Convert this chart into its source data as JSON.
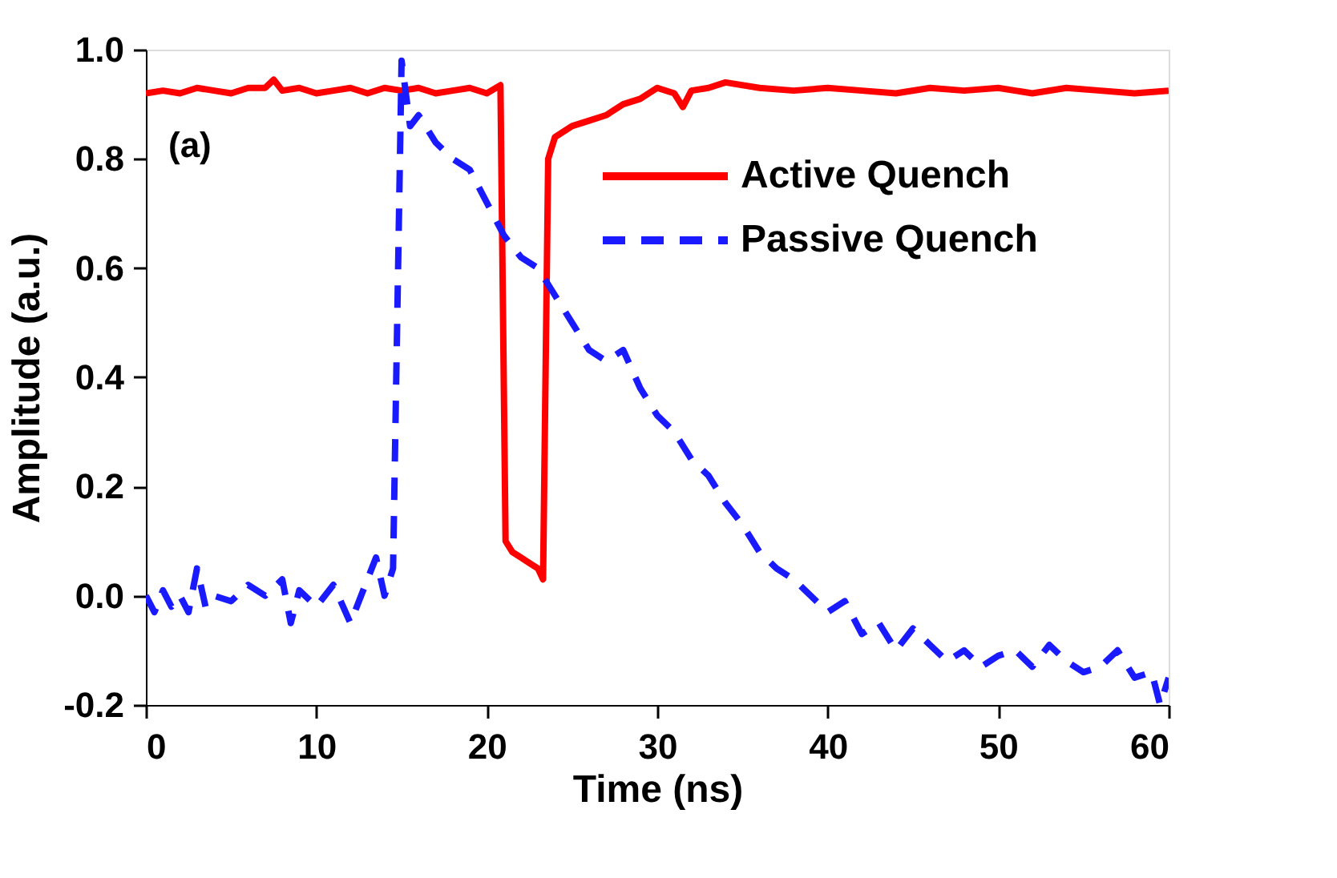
{
  "chart_data": {
    "type": "line",
    "xlabel": "Time (ns)",
    "ylabel": "Amplitude (a.u.)",
    "annotations": [
      "(a)"
    ],
    "xlim": [
      0,
      60
    ],
    "xticks": [
      0,
      10,
      20,
      30,
      40,
      50,
      60
    ],
    "ylim": [
      -0.2,
      1.0
    ],
    "yticks": [
      {
        "value": -0.2,
        "label": "-0.2"
      },
      {
        "value": 0,
        "label": "0.0"
      },
      {
        "value": 0.2,
        "label": "0.2"
      },
      {
        "value": 0.4,
        "label": "0.4"
      },
      {
        "value": 0.6,
        "label": "0.6"
      },
      {
        "value": 0.8,
        "label": "0.8"
      },
      {
        "value": 1.0,
        "label": "1.0"
      }
    ],
    "grid": false,
    "legend": "top right",
    "marker": "none",
    "series": [
      {
        "name": "Active Quench",
        "color": "#ff0000",
        "line_style": "solid",
        "x": [
          0,
          1,
          2,
          3,
          4,
          5,
          6,
          7,
          7.5,
          8,
          9,
          10,
          11,
          12,
          13,
          14,
          15,
          16,
          17,
          18,
          19,
          20,
          20.8,
          21.1,
          21.5,
          22,
          22.5,
          23,
          23.3,
          23.6,
          24,
          25,
          26,
          27,
          28,
          29,
          30,
          31,
          31.5,
          32,
          33,
          34,
          36,
          38,
          40,
          42,
          44,
          46,
          48,
          50,
          52,
          54,
          56,
          58,
          60
        ],
        "values": [
          0.92,
          0.925,
          0.92,
          0.93,
          0.925,
          0.92,
          0.93,
          0.93,
          0.945,
          0.925,
          0.93,
          0.92,
          0.925,
          0.93,
          0.92,
          0.93,
          0.925,
          0.93,
          0.92,
          0.925,
          0.93,
          0.92,
          0.935,
          0.1,
          0.08,
          0.07,
          0.06,
          0.05,
          0.03,
          0.8,
          0.84,
          0.86,
          0.87,
          0.88,
          0.9,
          0.91,
          0.93,
          0.92,
          0.895,
          0.925,
          0.93,
          0.94,
          0.93,
          0.925,
          0.93,
          0.925,
          0.92,
          0.93,
          0.925,
          0.93,
          0.92,
          0.93,
          0.925,
          0.92,
          0.925
        ]
      },
      {
        "name": "Passive Quench",
        "color": "#1a1aff",
        "line_style": "dashed",
        "x": [
          0,
          0.5,
          1,
          1.5,
          2,
          2.5,
          3,
          3.5,
          4,
          5,
          6,
          7,
          8,
          8.5,
          9,
          10,
          11,
          12,
          13,
          13.5,
          14,
          14.5,
          15,
          15.5,
          16,
          17,
          18,
          19,
          20,
          21,
          22,
          23,
          24,
          25,
          26,
          27,
          28,
          29,
          30,
          31,
          32,
          33,
          34,
          35,
          36,
          37,
          38,
          39,
          40,
          41,
          42,
          43,
          44,
          45,
          46,
          47,
          48,
          49,
          50,
          51,
          52,
          53,
          54,
          55,
          56,
          57,
          58,
          59,
          59.5,
          60
        ],
        "values": [
          0.0,
          -0.03,
          0.01,
          -0.02,
          0.0,
          -0.03,
          0.05,
          -0.02,
          0.0,
          -0.01,
          0.02,
          0.0,
          0.03,
          -0.05,
          0.01,
          -0.02,
          0.02,
          -0.05,
          0.03,
          0.07,
          0.0,
          0.05,
          0.98,
          0.86,
          0.88,
          0.83,
          0.8,
          0.78,
          0.72,
          0.66,
          0.62,
          0.6,
          0.55,
          0.5,
          0.45,
          0.43,
          0.45,
          0.38,
          0.33,
          0.3,
          0.25,
          0.22,
          0.17,
          0.13,
          0.08,
          0.05,
          0.03,
          0.0,
          -0.03,
          -0.01,
          -0.07,
          -0.05,
          -0.1,
          -0.06,
          -0.09,
          -0.12,
          -0.1,
          -0.13,
          -0.11,
          -0.1,
          -0.13,
          -0.09,
          -0.12,
          -0.14,
          -0.13,
          -0.1,
          -0.15,
          -0.14,
          -0.2,
          -0.15
        ]
      }
    ]
  }
}
